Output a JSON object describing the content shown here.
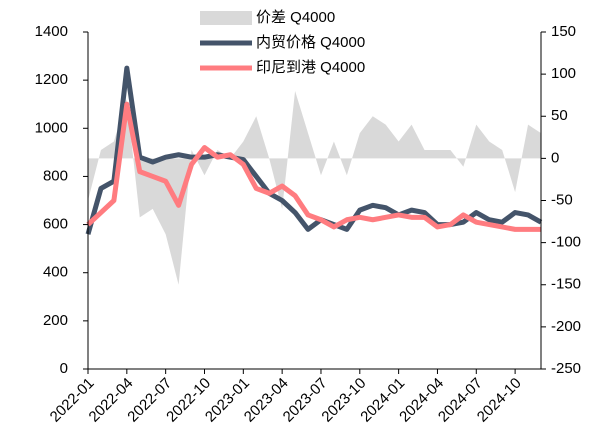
{
  "chart_data": {
    "type": "line",
    "categories": [
      "2022-01",
      null,
      null,
      "2022-04",
      null,
      null,
      "2022-07",
      null,
      null,
      "2022-10",
      null,
      null,
      "2023-01",
      null,
      null,
      "2023-04",
      null,
      null,
      "2023-07",
      null,
      null,
      "2023-10",
      null,
      null,
      "2024-01",
      null,
      null,
      "2024-04",
      null,
      null,
      "2024-07",
      null,
      null,
      "2024-10",
      null,
      null
    ],
    "series": [
      {
        "name": "价差 Q4000",
        "color": "#d9d9d9",
        "axis": "y2",
        "kind": "area",
        "values": [
          -50,
          10,
          20,
          70,
          -70,
          -60,
          -90,
          -150,
          10,
          -20,
          10,
          0,
          20,
          50,
          0,
          -60,
          80,
          30,
          -20,
          20,
          -20,
          30,
          50,
          40,
          20,
          40,
          10,
          10,
          10,
          -10,
          40,
          20,
          10,
          -40,
          40,
          30
        ]
      },
      {
        "name": "内贸价格 Q4000",
        "color": "#44546a",
        "kind": "line",
        "values": [
          560,
          750,
          780,
          1250,
          880,
          860,
          880,
          890,
          880,
          880,
          890,
          880,
          870,
          800,
          730,
          700,
          650,
          580,
          620,
          600,
          580,
          660,
          680,
          670,
          640,
          660,
          650,
          600,
          600,
          610,
          650,
          620,
          610,
          650,
          640,
          610
        ]
      },
      {
        "name": "印尼到港 Q4000",
        "color": "#ff7c80",
        "kind": "line",
        "values": [
          600,
          650,
          700,
          1100,
          820,
          800,
          780,
          680,
          850,
          920,
          880,
          890,
          850,
          750,
          730,
          760,
          720,
          640,
          620,
          590,
          620,
          630,
          620,
          630,
          640,
          630,
          630,
          590,
          600,
          640,
          610,
          600,
          590,
          580,
          580,
          580
        ]
      }
    ],
    "ylim": [
      0,
      1400
    ],
    "yticks": [
      0,
      200,
      400,
      600,
      800,
      1000,
      1200,
      1400
    ],
    "y2lim": [
      -250,
      150
    ],
    "y2ticks": [
      -250,
      -200,
      -150,
      -100,
      -50,
      0,
      50,
      100,
      150
    ]
  }
}
